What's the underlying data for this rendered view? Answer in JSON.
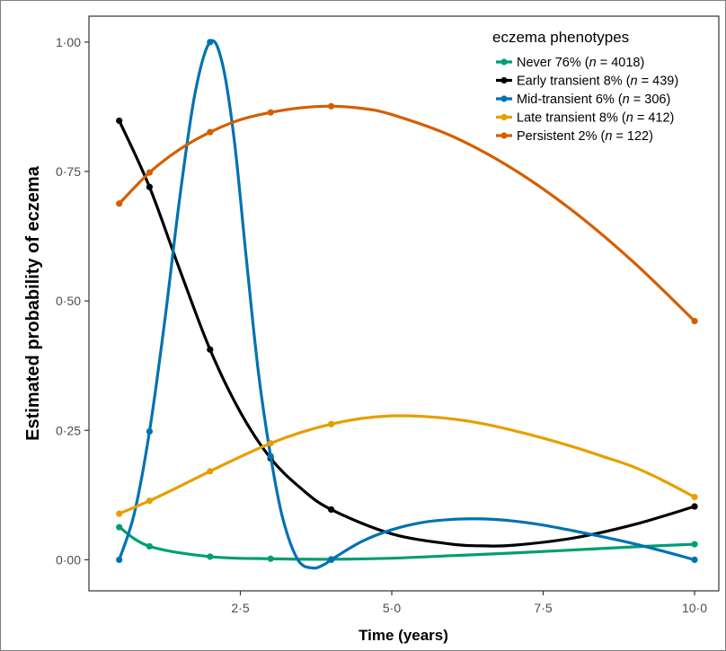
{
  "chart_data": {
    "type": "line",
    "title": "",
    "xlabel": "Time (years)",
    "ylabel": "Estimated probability of eczema",
    "xlim": [
      0,
      10.4
    ],
    "ylim": [
      -0.06,
      1.05
    ],
    "x_ticks": [
      2.5,
      5.0,
      7.5,
      10.0
    ],
    "x_tick_labels": [
      "2·5",
      "5·0",
      "7·5",
      "10·0"
    ],
    "y_ticks": [
      0,
      0.25,
      0.5,
      0.75,
      1.0
    ],
    "y_tick_labels": [
      "0·00",
      "0·25",
      "0·50",
      "0·75",
      "1·00"
    ],
    "grid": false,
    "legend_position": "top-right",
    "legend_title": "eczema phenotypes",
    "x": [
      0.5,
      1,
      2,
      3,
      4,
      10
    ],
    "series": [
      {
        "name": "Never 76% (n = 4018)",
        "name_parts": [
          "Never 76% (",
          "n",
          " = 4018)"
        ],
        "color": "#009E73",
        "values": [
          0.063,
          0.026,
          0.006,
          0.002,
          0.001,
          0.03
        ],
        "curve": [
          [
            0.5,
            0.063
          ],
          [
            1.0,
            0.026
          ],
          [
            2.0,
            0.006
          ],
          [
            3.0,
            0.002
          ],
          [
            4.0,
            0.001
          ],
          [
            5.0,
            0.003
          ],
          [
            6.0,
            0.008
          ],
          [
            7.0,
            0.013
          ],
          [
            8.0,
            0.019
          ],
          [
            9.0,
            0.025
          ],
          [
            10.0,
            0.03
          ]
        ]
      },
      {
        "name": "Early transient 8% (n = 439)",
        "name_parts": [
          "Early transient 8% (",
          "n",
          " = 439)"
        ],
        "color": "#000000",
        "values": [
          0.848,
          0.72,
          0.406,
          0.196,
          0.097,
          0.103
        ],
        "curve": [
          [
            0.5,
            0.848
          ],
          [
            1.0,
            0.72
          ],
          [
            1.5,
            0.56
          ],
          [
            2.0,
            0.406
          ],
          [
            2.5,
            0.285
          ],
          [
            3.0,
            0.196
          ],
          [
            3.5,
            0.138
          ],
          [
            4.0,
            0.097
          ],
          [
            5.0,
            0.05
          ],
          [
            6.0,
            0.03
          ],
          [
            6.5,
            0.027
          ],
          [
            7.0,
            0.028
          ],
          [
            8.0,
            0.042
          ],
          [
            9.0,
            0.068
          ],
          [
            10.0,
            0.103
          ]
        ]
      },
      {
        "name": "Mid-transient 6% (n = 306)",
        "name_parts": [
          "Mid-transient 6% (",
          "n",
          " = 306)"
        ],
        "color": "#0072B2",
        "values": [
          0.0,
          0.248,
          1.0,
          0.2,
          0.0,
          0.0
        ],
        "curve": [
          [
            0.5,
            0.0
          ],
          [
            0.75,
            0.09
          ],
          [
            1.0,
            0.248
          ],
          [
            1.25,
            0.46
          ],
          [
            1.5,
            0.7
          ],
          [
            1.75,
            0.9
          ],
          [
            2.0,
            1.0
          ],
          [
            2.2,
            0.96
          ],
          [
            2.4,
            0.81
          ],
          [
            2.6,
            0.58
          ],
          [
            2.8,
            0.36
          ],
          [
            3.0,
            0.2
          ],
          [
            3.2,
            0.08
          ],
          [
            3.45,
            0.0
          ],
          [
            3.7,
            -0.016
          ],
          [
            3.9,
            -0.008
          ],
          [
            4.0,
            0.0
          ],
          [
            4.5,
            0.035
          ],
          [
            5.0,
            0.058
          ],
          [
            5.5,
            0.072
          ],
          [
            6.0,
            0.078
          ],
          [
            6.5,
            0.079
          ],
          [
            7.0,
            0.075
          ],
          [
            7.5,
            0.067
          ],
          [
            8.0,
            0.056
          ],
          [
            8.5,
            0.044
          ],
          [
            9.0,
            0.031
          ],
          [
            9.5,
            0.016
          ],
          [
            10.0,
            0.0
          ]
        ]
      },
      {
        "name": "Late transient 8% (n = 412)",
        "name_parts": [
          "Late transient 8% (",
          "n",
          " = 412)"
        ],
        "color": "#E69F00",
        "values": [
          0.089,
          0.114,
          0.171,
          0.225,
          0.262,
          0.121
        ],
        "curve": [
          [
            0.5,
            0.089
          ],
          [
            1.0,
            0.114
          ],
          [
            1.5,
            0.142
          ],
          [
            2.0,
            0.171
          ],
          [
            2.5,
            0.199
          ],
          [
            3.0,
            0.225
          ],
          [
            3.5,
            0.246
          ],
          [
            4.0,
            0.262
          ],
          [
            4.5,
            0.273
          ],
          [
            5.0,
            0.278
          ],
          [
            5.5,
            0.277
          ],
          [
            6.0,
            0.272
          ],
          [
            6.5,
            0.263
          ],
          [
            7.0,
            0.25
          ],
          [
            7.5,
            0.235
          ],
          [
            8.0,
            0.218
          ],
          [
            8.5,
            0.199
          ],
          [
            9.0,
            0.179
          ],
          [
            9.5,
            0.152
          ],
          [
            10.0,
            0.121
          ]
        ]
      },
      {
        "name": "Persistent 2% (n = 122)",
        "name_parts": [
          "Persistent 2% (",
          "n",
          " = 122)"
        ],
        "color": "#D55E00",
        "values": [
          0.688,
          0.748,
          0.826,
          0.864,
          0.876,
          0.461
        ],
        "curve": [
          [
            0.5,
            0.688
          ],
          [
            1.0,
            0.748
          ],
          [
            1.5,
            0.793
          ],
          [
            2.0,
            0.826
          ],
          [
            2.5,
            0.85
          ],
          [
            3.0,
            0.864
          ],
          [
            3.5,
            0.873
          ],
          [
            4.0,
            0.876
          ],
          [
            4.5,
            0.872
          ],
          [
            5.0,
            0.86
          ],
          [
            6.0,
            0.818
          ],
          [
            7.0,
            0.755
          ],
          [
            8.0,
            0.673
          ],
          [
            9.0,
            0.574
          ],
          [
            10.0,
            0.461
          ]
        ]
      }
    ]
  }
}
